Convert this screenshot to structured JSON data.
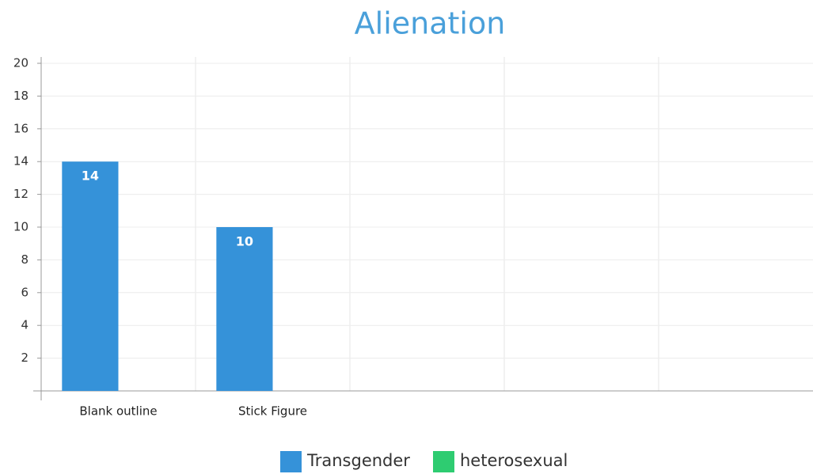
{
  "chart_data": {
    "type": "bar",
    "title": "Alienation",
    "categories": [
      "Blank outline",
      "Stick Figure",
      null,
      null,
      null
    ],
    "series": [
      {
        "name": "Transgender",
        "color": "#3592d9",
        "values": [
          14,
          10,
          null,
          null,
          null
        ]
      },
      {
        "name": "heterosexual",
        "color": "#2ecc71",
        "values": [
          0,
          0,
          null,
          null,
          null
        ]
      }
    ],
    "ylim": [
      0,
      20
    ],
    "yticks": [
      2,
      4,
      6,
      8,
      10,
      12,
      14,
      16,
      18,
      20
    ],
    "grid": true,
    "legend": "bottom"
  }
}
